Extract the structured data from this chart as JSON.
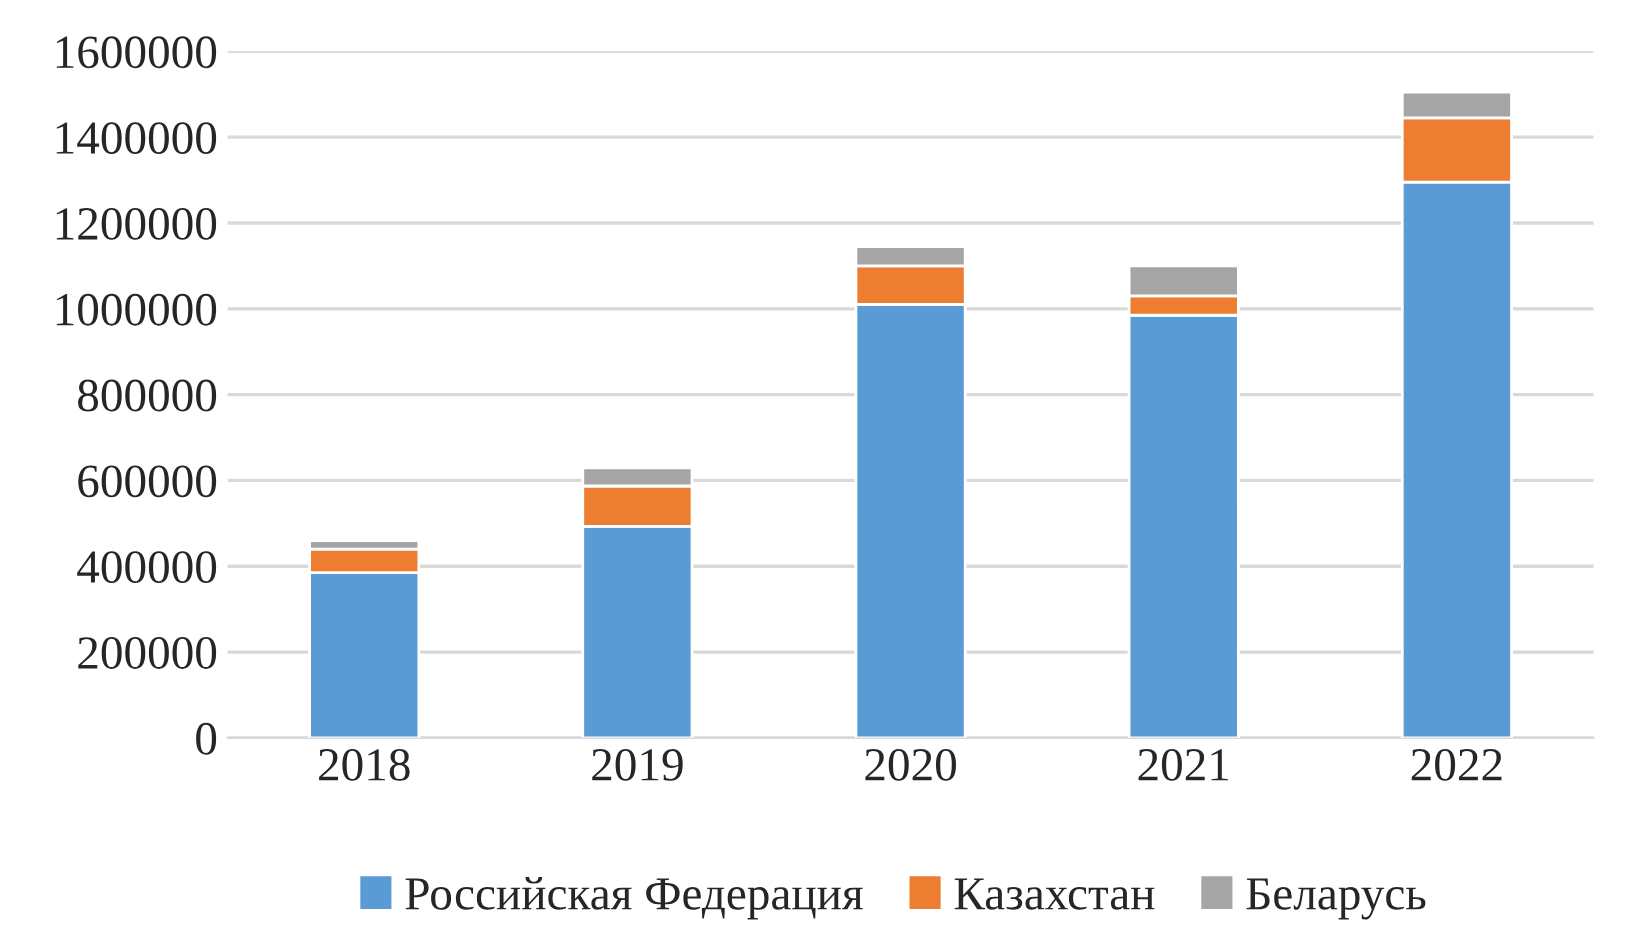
{
  "chart_data": {
    "type": "bar",
    "stacked": true,
    "categories": [
      "2018",
      "2019",
      "2020",
      "2021",
      "2022"
    ],
    "series": [
      {
        "name": "Российская Федерация",
        "color": "#5b9bd5",
        "values": [
          385000,
          493000,
          1010000,
          985000,
          1295000
        ]
      },
      {
        "name": "Казахстан",
        "color": "#ed7d31",
        "values": [
          55000,
          94000,
          90000,
          45000,
          150000
        ]
      },
      {
        "name": "Беларусь",
        "color": "#a5a5a5",
        "values": [
          20000,
          42000,
          45000,
          70000,
          60000
        ]
      }
    ],
    "ylim": [
      0,
      1600000
    ],
    "yticks": [
      0,
      200000,
      400000,
      600000,
      800000,
      1000000,
      1200000,
      1400000,
      1600000
    ],
    "grid": "y",
    "legend": "bottom"
  }
}
